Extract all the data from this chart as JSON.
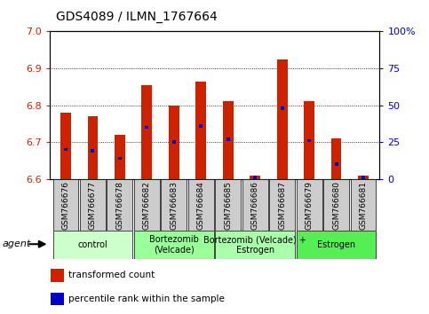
{
  "title": "GDS4089 / ILMN_1767664",
  "samples": [
    "GSM766676",
    "GSM766677",
    "GSM766678",
    "GSM766682",
    "GSM766683",
    "GSM766684",
    "GSM766685",
    "GSM766686",
    "GSM766687",
    "GSM766679",
    "GSM766680",
    "GSM766681"
  ],
  "transformed_counts": [
    6.78,
    6.77,
    6.72,
    6.855,
    6.8,
    6.865,
    6.81,
    6.61,
    6.925,
    6.81,
    6.71,
    6.61
  ],
  "percentile_ranks": [
    20,
    19,
    14,
    35,
    25,
    36,
    27,
    1,
    48,
    26,
    10,
    1
  ],
  "bar_color": "#CC2200",
  "blue_color": "#0000CC",
  "ymin": 6.6,
  "ymax": 7.0,
  "yticks": [
    6.6,
    6.7,
    6.8,
    6.9,
    7.0
  ],
  "right_yticks": [
    0,
    25,
    50,
    75,
    100
  ],
  "groups": [
    {
      "label": "control",
      "start": 0,
      "end": 3,
      "color": "#CCFFCC"
    },
    {
      "label": "Bortezomib\n(Velcade)",
      "start": 3,
      "end": 6,
      "color": "#99FF99"
    },
    {
      "label": "Bortezomib (Velcade) +\nEstrogen",
      "start": 6,
      "end": 9,
      "color": "#AAFFAA"
    },
    {
      "label": "Estrogen",
      "start": 9,
      "end": 12,
      "color": "#55EE55"
    }
  ],
  "legend_items": [
    {
      "label": "transformed count",
      "color": "#CC2200"
    },
    {
      "label": "percentile rank within the sample",
      "color": "#0000CC"
    }
  ],
  "agent_label": "agent",
  "bar_width": 0.38,
  "blue_bar_width": 0.14
}
